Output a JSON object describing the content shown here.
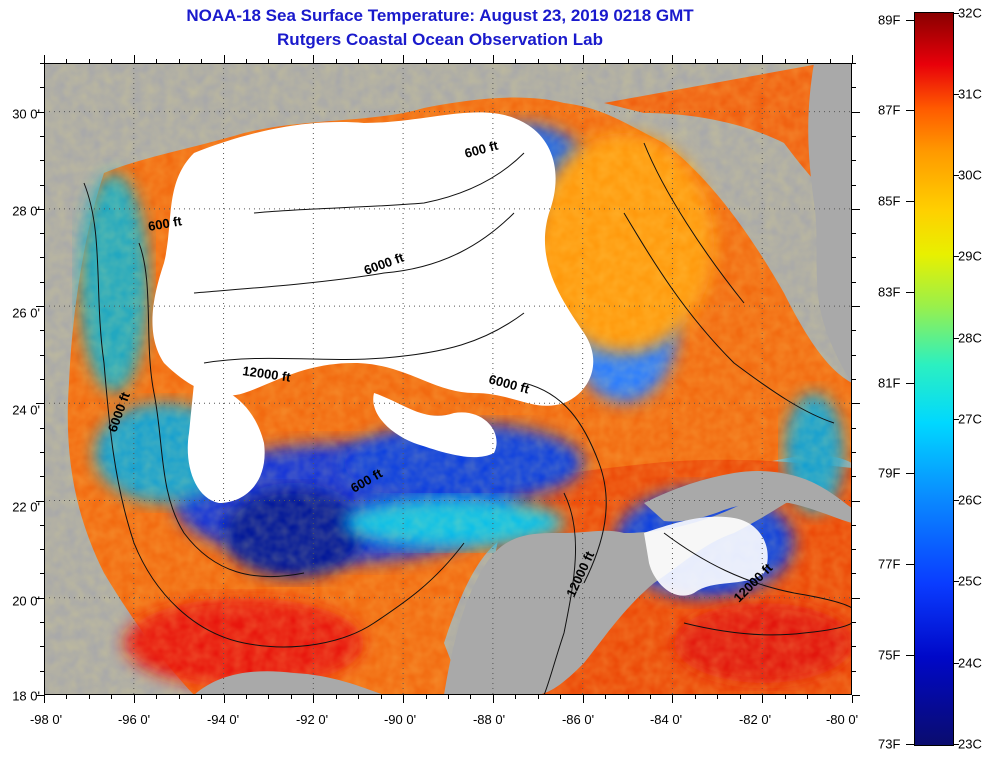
{
  "title": {
    "line1": "NOAA-18 Sea Surface Temperature:  August 23, 2019 0218 GMT",
    "line2": "Rutgers Coastal Ocean Observation Lab"
  },
  "axes": {
    "lat_labels": [
      "30 0'",
      "28 0'",
      "26 0'",
      "24 0'",
      "22 0'",
      "20 0'",
      "18 0'"
    ],
    "lon_labels": [
      "-98 0'",
      "-96 0'",
      "-94 0'",
      "-92 0'",
      "-90 0'",
      "-88 0'",
      "-86 0'",
      "-84 0'",
      "-82 0'",
      "-80 0'"
    ],
    "lat_range": [
      18,
      31
    ],
    "lon_range": [
      -98,
      -80
    ]
  },
  "colorbar": {
    "f_labels": [
      "89F",
      "87F",
      "85F",
      "83F",
      "81F",
      "79F",
      "77F",
      "75F",
      "73F"
    ],
    "c_labels": [
      "32C",
      "31C",
      "30C",
      "29C",
      "28C",
      "27C",
      "26C",
      "25C",
      "24C",
      "23C"
    ],
    "range_c": [
      23,
      32
    ],
    "colors": {
      "low": "#0a0c6e",
      "high": "#8a0000"
    }
  },
  "contour_labels": [
    {
      "text": "600 ft"
    },
    {
      "text": "600 ft"
    },
    {
      "text": "6000 ft"
    },
    {
      "text": "12000 ft"
    },
    {
      "text": "6000 ft"
    },
    {
      "text": "6000 ft"
    },
    {
      "text": "600 ft"
    },
    {
      "text": "12000 ft"
    },
    {
      "text": "12000 ft"
    }
  ],
  "colors": {
    "land": "#a9a9a9",
    "cloud": "#ffffff",
    "warm": "#f26a10",
    "cool": "#1236d8"
  }
}
